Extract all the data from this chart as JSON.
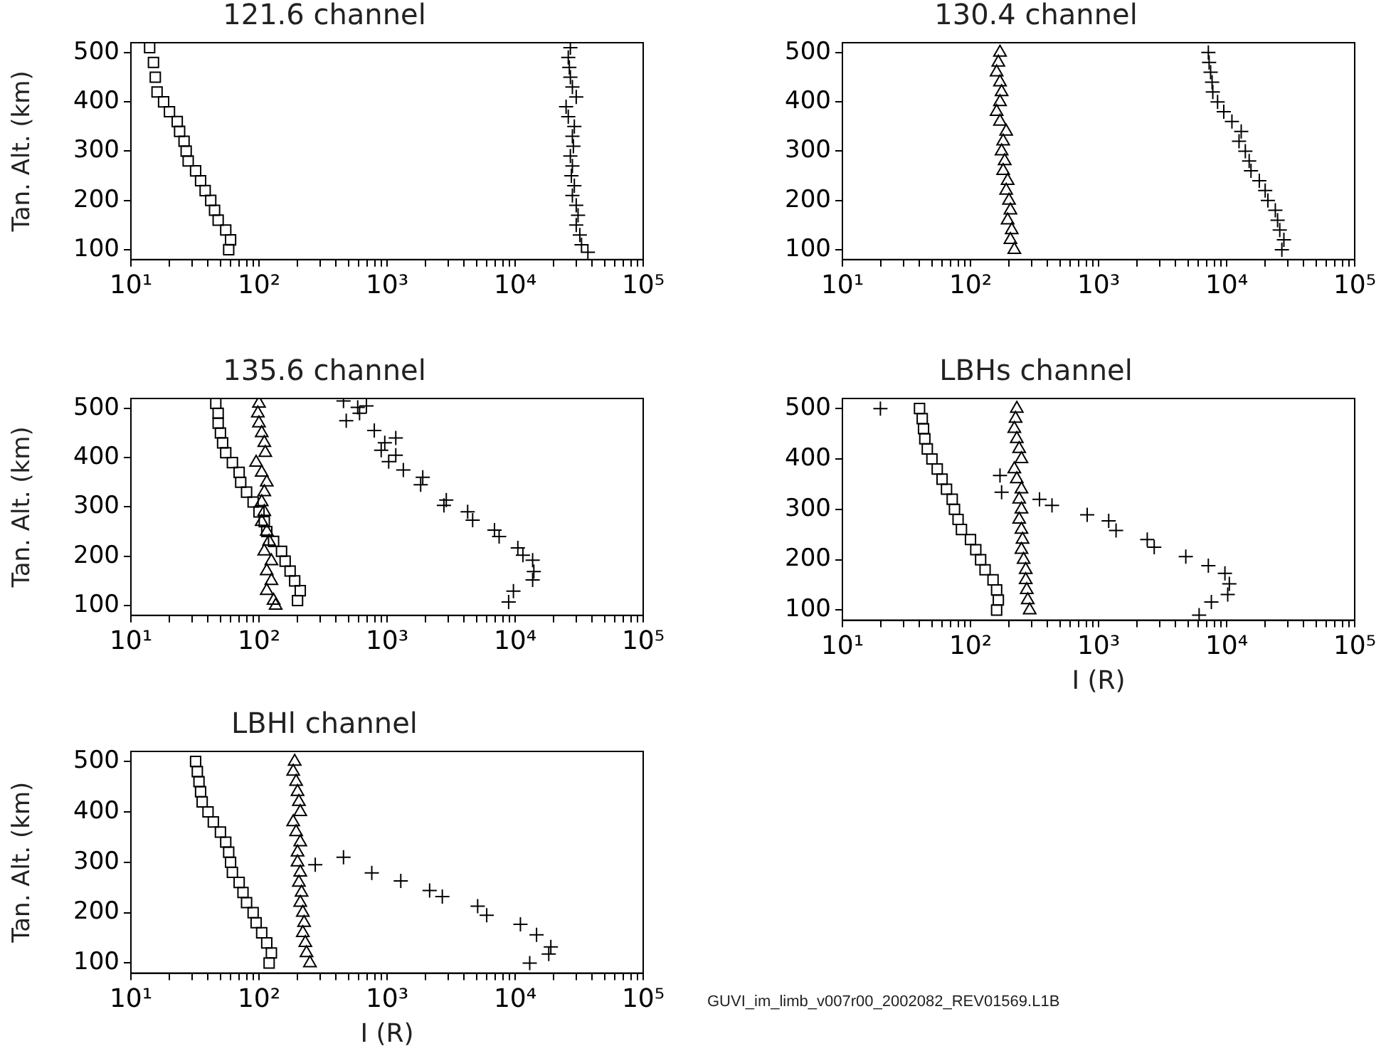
{
  "chart_data": [
    {
      "type": "scatter",
      "title": "121.6 channel",
      "ylabel": "Tan. Alt. (km)",
      "log": "x",
      "grid": false,
      "xlim": [
        10,
        100000
      ],
      "ylim": [
        80,
        520
      ],
      "xticks": [
        {
          "value": 10,
          "label": "10¹"
        },
        {
          "value": 20,
          "label": null
        },
        {
          "value": 30,
          "label": null
        },
        {
          "value": 40,
          "label": null
        },
        {
          "value": 50,
          "label": null
        },
        {
          "value": 60,
          "label": null
        },
        {
          "value": 70,
          "label": null
        },
        {
          "value": 80,
          "label": null
        },
        {
          "value": 90,
          "label": null
        },
        {
          "value": 100,
          "label": "10²"
        },
        {
          "value": 200,
          "label": null
        },
        {
          "value": 300,
          "label": null
        },
        {
          "value": 400,
          "label": null
        },
        {
          "value": 500,
          "label": null
        },
        {
          "value": 600,
          "label": null
        },
        {
          "value": 700,
          "label": null
        },
        {
          "value": 800,
          "label": null
        },
        {
          "value": 900,
          "label": null
        },
        {
          "value": 1000,
          "label": "10³"
        },
        {
          "value": 2000,
          "label": null
        },
        {
          "value": 3000,
          "label": null
        },
        {
          "value": 4000,
          "label": null
        },
        {
          "value": 5000,
          "label": null
        },
        {
          "value": 6000,
          "label": null
        },
        {
          "value": 7000,
          "label": null
        },
        {
          "value": 8000,
          "label": null
        },
        {
          "value": 9000,
          "label": null
        },
        {
          "value": 10000,
          "label": "10⁴"
        },
        {
          "value": 20000,
          "label": null
        },
        {
          "value": 30000,
          "label": null
        },
        {
          "value": 40000,
          "label": null
        },
        {
          "value": 50000,
          "label": null
        },
        {
          "value": 60000,
          "label": null
        },
        {
          "value": 70000,
          "label": null
        },
        {
          "value": 80000,
          "label": null
        },
        {
          "value": 90000,
          "label": null
        },
        {
          "value": 100000,
          "label": "10⁵"
        }
      ],
      "yticks": [
        100,
        200,
        300,
        400,
        500
      ],
      "series": [
        {
          "color": "#000000",
          "marker": "square",
          "x": [
            14,
            15,
            15.5,
            16,
            18,
            20,
            23,
            24,
            26,
            27,
            28,
            32,
            35,
            38,
            42,
            45,
            48,
            55,
            60,
            58
          ],
          "values": [
            510,
            480,
            450,
            420,
            400,
            380,
            360,
            340,
            320,
            300,
            280,
            260,
            240,
            220,
            200,
            180,
            160,
            140,
            120,
            100
          ]
        },
        {
          "color": "#000000",
          "marker": "cross",
          "x": [
            27000,
            26000,
            26500,
            27000,
            28000,
            30000,
            25000,
            26000,
            29000,
            28000,
            28500,
            27000,
            28000,
            27500,
            29000,
            28000,
            30000,
            31000,
            30000,
            32000,
            33000,
            37000
          ],
          "values": [
            510,
            490,
            470,
            450,
            430,
            410,
            390,
            370,
            350,
            330,
            310,
            290,
            270,
            250,
            230,
            210,
            190,
            170,
            150,
            130,
            110,
            95
          ]
        }
      ]
    },
    {
      "type": "scatter",
      "title": "130.4 channel",
      "log": "x",
      "grid": false,
      "xlim": [
        10,
        100000
      ],
      "ylim": [
        80,
        520
      ],
      "xticks": [
        {
          "value": 10,
          "label": "10¹"
        },
        {
          "value": 20,
          "label": null
        },
        {
          "value": 30,
          "label": null
        },
        {
          "value": 40,
          "label": null
        },
        {
          "value": 50,
          "label": null
        },
        {
          "value": 60,
          "label": null
        },
        {
          "value": 70,
          "label": null
        },
        {
          "value": 80,
          "label": null
        },
        {
          "value": 90,
          "label": null
        },
        {
          "value": 100,
          "label": "10²"
        },
        {
          "value": 200,
          "label": null
        },
        {
          "value": 300,
          "label": null
        },
        {
          "value": 400,
          "label": null
        },
        {
          "value": 500,
          "label": null
        },
        {
          "value": 600,
          "label": null
        },
        {
          "value": 700,
          "label": null
        },
        {
          "value": 800,
          "label": null
        },
        {
          "value": 900,
          "label": null
        },
        {
          "value": 1000,
          "label": "10³"
        },
        {
          "value": 2000,
          "label": null
        },
        {
          "value": 3000,
          "label": null
        },
        {
          "value": 4000,
          "label": null
        },
        {
          "value": 5000,
          "label": null
        },
        {
          "value": 6000,
          "label": null
        },
        {
          "value": 7000,
          "label": null
        },
        {
          "value": 8000,
          "label": null
        },
        {
          "value": 9000,
          "label": null
        },
        {
          "value": 10000,
          "label": "10⁴"
        },
        {
          "value": 20000,
          "label": null
        },
        {
          "value": 30000,
          "label": null
        },
        {
          "value": 40000,
          "label": null
        },
        {
          "value": 50000,
          "label": null
        },
        {
          "value": 60000,
          "label": null
        },
        {
          "value": 70000,
          "label": null
        },
        {
          "value": 80000,
          "label": null
        },
        {
          "value": 90000,
          "label": null
        },
        {
          "value": 100000,
          "label": "10⁵"
        }
      ],
      "yticks": [
        100,
        200,
        300,
        400,
        500
      ],
      "series": [
        {
          "color": "#000000",
          "marker": "triangle",
          "x": [
            170,
            165,
            160,
            170,
            175,
            170,
            160,
            170,
            190,
            180,
            175,
            185,
            180,
            195,
            190,
            200,
            205,
            195,
            210,
            205,
            220
          ],
          "values": [
            500,
            480,
            460,
            440,
            420,
            400,
            380,
            360,
            340,
            320,
            300,
            280,
            260,
            240,
            220,
            200,
            180,
            160,
            140,
            120,
            100
          ]
        },
        {
          "color": "#000000",
          "marker": "cross",
          "x": [
            7200,
            7300,
            7500,
            7700,
            7800,
            8500,
            9500,
            11000,
            13000,
            12500,
            14000,
            15000,
            15500,
            18000,
            20000,
            21000,
            24000,
            25000,
            26000,
            28000,
            27000
          ],
          "values": [
            500,
            480,
            460,
            440,
            420,
            400,
            380,
            360,
            340,
            320,
            300,
            280,
            260,
            240,
            220,
            200,
            180,
            160,
            140,
            120,
            100
          ]
        }
      ]
    },
    {
      "type": "scatter",
      "title": "135.6 channel",
      "ylabel": "Tan. Alt. (km)",
      "log": "x",
      "grid": false,
      "xlim": [
        10,
        100000
      ],
      "ylim": [
        80,
        520
      ],
      "xticks": [
        {
          "value": 10,
          "label": "10¹"
        },
        {
          "value": 20,
          "label": null
        },
        {
          "value": 30,
          "label": null
        },
        {
          "value": 40,
          "label": null
        },
        {
          "value": 50,
          "label": null
        },
        {
          "value": 60,
          "label": null
        },
        {
          "value": 70,
          "label": null
        },
        {
          "value": 80,
          "label": null
        },
        {
          "value": 90,
          "label": null
        },
        {
          "value": 100,
          "label": "10²"
        },
        {
          "value": 200,
          "label": null
        },
        {
          "value": 300,
          "label": null
        },
        {
          "value": 400,
          "label": null
        },
        {
          "value": 500,
          "label": null
        },
        {
          "value": 600,
          "label": null
        },
        {
          "value": 700,
          "label": null
        },
        {
          "value": 800,
          "label": null
        },
        {
          "value": 900,
          "label": null
        },
        {
          "value": 1000,
          "label": "10³"
        },
        {
          "value": 2000,
          "label": null
        },
        {
          "value": 3000,
          "label": null
        },
        {
          "value": 4000,
          "label": null
        },
        {
          "value": 5000,
          "label": null
        },
        {
          "value": 6000,
          "label": null
        },
        {
          "value": 7000,
          "label": null
        },
        {
          "value": 8000,
          "label": null
        },
        {
          "value": 9000,
          "label": null
        },
        {
          "value": 10000,
          "label": "10⁴"
        },
        {
          "value": 20000,
          "label": null
        },
        {
          "value": 30000,
          "label": null
        },
        {
          "value": 40000,
          "label": null
        },
        {
          "value": 50000,
          "label": null
        },
        {
          "value": 60000,
          "label": null
        },
        {
          "value": 70000,
          "label": null
        },
        {
          "value": 80000,
          "label": null
        },
        {
          "value": 90000,
          "label": null
        },
        {
          "value": 100000,
          "label": "10⁵"
        }
      ],
      "yticks": [
        100,
        200,
        300,
        400,
        500
      ],
      "series": [
        {
          "color": "#000000",
          "marker": "square",
          "x": [
            46,
            48,
            48,
            50,
            52,
            55,
            62,
            70,
            72,
            80,
            90,
            100,
            110,
            115,
            130,
            150,
            160,
            175,
            190,
            210,
            200
          ],
          "values": [
            510,
            490,
            470,
            450,
            430,
            410,
            390,
            370,
            350,
            330,
            310,
            290,
            270,
            250,
            230,
            210,
            190,
            170,
            150,
            130,
            110
          ]
        },
        {
          "color": "#000000",
          "marker": "triangle",
          "x": [
            100,
            98,
            100,
            105,
            110,
            112,
            95,
            105,
            115,
            110,
            105,
            110,
            105,
            115,
            120,
            110,
            125,
            115,
            125,
            115,
            130,
            135
          ],
          "values": [
            510,
            490,
            470,
            450,
            430,
            410,
            390,
            370,
            350,
            330,
            310,
            290,
            270,
            250,
            230,
            210,
            190,
            170,
            150,
            130,
            110,
            100
          ]
        },
        {
          "color": "#000000",
          "marker": "cross",
          "x": [
            457,
            590,
            690,
            610,
            480,
            795,
            1170,
            960,
            900,
            1170,
            1030,
            1340,
            1900,
            1830,
            2900,
            2780,
            4260,
            4660,
            6900,
            7500,
            10500,
            11500,
            13700,
            14000,
            13700,
            9700,
            8900
          ],
          "values": [
            515,
            502,
            505,
            490,
            475,
            455,
            440,
            430,
            415,
            405,
            392,
            375,
            360,
            345,
            314,
            303,
            290,
            273,
            253,
            240,
            217,
            202,
            192,
            169,
            152,
            129,
            107
          ]
        }
      ]
    },
    {
      "type": "scatter",
      "title": "LBHs channel",
      "xlabel": "I (R)",
      "log": "x",
      "grid": false,
      "xlim": [
        10,
        100000
      ],
      "ylim": [
        80,
        520
      ],
      "xticks": [
        {
          "value": 10,
          "label": "10¹"
        },
        {
          "value": 20,
          "label": null
        },
        {
          "value": 30,
          "label": null
        },
        {
          "value": 40,
          "label": null
        },
        {
          "value": 50,
          "label": null
        },
        {
          "value": 60,
          "label": null
        },
        {
          "value": 70,
          "label": null
        },
        {
          "value": 80,
          "label": null
        },
        {
          "value": 90,
          "label": null
        },
        {
          "value": 100,
          "label": "10²"
        },
        {
          "value": 200,
          "label": null
        },
        {
          "value": 300,
          "label": null
        },
        {
          "value": 400,
          "label": null
        },
        {
          "value": 500,
          "label": null
        },
        {
          "value": 600,
          "label": null
        },
        {
          "value": 700,
          "label": null
        },
        {
          "value": 800,
          "label": null
        },
        {
          "value": 900,
          "label": null
        },
        {
          "value": 1000,
          "label": "10³"
        },
        {
          "value": 2000,
          "label": null
        },
        {
          "value": 3000,
          "label": null
        },
        {
          "value": 4000,
          "label": null
        },
        {
          "value": 5000,
          "label": null
        },
        {
          "value": 6000,
          "label": null
        },
        {
          "value": 7000,
          "label": null
        },
        {
          "value": 8000,
          "label": null
        },
        {
          "value": 9000,
          "label": null
        },
        {
          "value": 10000,
          "label": "10⁴"
        },
        {
          "value": 20000,
          "label": null
        },
        {
          "value": 30000,
          "label": null
        },
        {
          "value": 40000,
          "label": null
        },
        {
          "value": 50000,
          "label": null
        },
        {
          "value": 60000,
          "label": null
        },
        {
          "value": 70000,
          "label": null
        },
        {
          "value": 80000,
          "label": null
        },
        {
          "value": 90000,
          "label": null
        },
        {
          "value": 100000,
          "label": "10⁵"
        }
      ],
      "yticks": [
        100,
        200,
        300,
        400,
        500
      ],
      "series": [
        {
          "color": "#000000",
          "marker": "square",
          "x": [
            40,
            42,
            43,
            44,
            46,
            50,
            55,
            60,
            65,
            72,
            75,
            80,
            85,
            100,
            110,
            120,
            130,
            150,
            160,
            165,
            160
          ],
          "values": [
            500,
            480,
            460,
            440,
            420,
            400,
            380,
            360,
            340,
            320,
            300,
            280,
            260,
            240,
            220,
            200,
            180,
            160,
            140,
            120,
            100
          ]
        },
        {
          "color": "#000000",
          "marker": "triangle",
          "x": [
            230,
            225,
            220,
            230,
            240,
            250,
            220,
            230,
            250,
            240,
            250,
            240,
            250,
            255,
            250,
            260,
            270,
            270,
            275,
            280,
            290
          ],
          "values": [
            500,
            480,
            460,
            440,
            420,
            400,
            380,
            360,
            340,
            320,
            300,
            280,
            260,
            240,
            220,
            200,
            180,
            160,
            140,
            120,
            100
          ]
        },
        {
          "color": "#000000",
          "marker": "cross",
          "x": [
            19.8,
            170,
            175,
            346,
            433,
            815,
            1200,
            1370,
            2400,
            2720,
            4800,
            7200,
            9700,
            10500,
            10200,
            7600,
            6100
          ],
          "values": [
            500,
            367,
            334,
            320,
            308,
            289,
            277,
            258,
            240,
            225,
            206,
            188,
            173,
            152,
            131,
            116,
            90
          ]
        }
      ]
    },
    {
      "type": "scatter",
      "title": "LBHl channel",
      "xlabel": "I (R)",
      "ylabel": "Tan. Alt. (km)",
      "log": "x",
      "grid": false,
      "xlim": [
        10,
        100000
      ],
      "ylim": [
        80,
        520
      ],
      "annotations": [
        "GUVI_im_limb_v007r00_2002082_REV01569.L1B"
      ],
      "xticks": [
        {
          "value": 10,
          "label": "10¹"
        },
        {
          "value": 20,
          "label": null
        },
        {
          "value": 30,
          "label": null
        },
        {
          "value": 40,
          "label": null
        },
        {
          "value": 50,
          "label": null
        },
        {
          "value": 60,
          "label": null
        },
        {
          "value": 70,
          "label": null
        },
        {
          "value": 80,
          "label": null
        },
        {
          "value": 90,
          "label": null
        },
        {
          "value": 100,
          "label": "10²"
        },
        {
          "value": 200,
          "label": null
        },
        {
          "value": 300,
          "label": null
        },
        {
          "value": 400,
          "label": null
        },
        {
          "value": 500,
          "label": null
        },
        {
          "value": 600,
          "label": null
        },
        {
          "value": 700,
          "label": null
        },
        {
          "value": 800,
          "label": null
        },
        {
          "value": 900,
          "label": null
        },
        {
          "value": 1000,
          "label": "10³"
        },
        {
          "value": 2000,
          "label": null
        },
        {
          "value": 3000,
          "label": null
        },
        {
          "value": 4000,
          "label": null
        },
        {
          "value": 5000,
          "label": null
        },
        {
          "value": 6000,
          "label": null
        },
        {
          "value": 7000,
          "label": null
        },
        {
          "value": 8000,
          "label": null
        },
        {
          "value": 9000,
          "label": null
        },
        {
          "value": 10000,
          "label": "10⁴"
        },
        {
          "value": 20000,
          "label": null
        },
        {
          "value": 30000,
          "label": null
        },
        {
          "value": 40000,
          "label": null
        },
        {
          "value": 50000,
          "label": null
        },
        {
          "value": 60000,
          "label": null
        },
        {
          "value": 70000,
          "label": null
        },
        {
          "value": 80000,
          "label": null
        },
        {
          "value": 90000,
          "label": null
        },
        {
          "value": 100000,
          "label": "10⁵"
        }
      ],
      "yticks": [
        100,
        200,
        300,
        400,
        500
      ],
      "series": [
        {
          "color": "#000000",
          "marker": "square",
          "x": [
            32,
            33,
            34,
            35,
            36,
            40,
            44,
            50,
            55,
            58,
            60,
            62,
            70,
            75,
            80,
            90,
            95,
            105,
            115,
            125,
            120
          ],
          "values": [
            500,
            480,
            460,
            440,
            420,
            400,
            380,
            360,
            340,
            320,
            300,
            280,
            260,
            240,
            220,
            200,
            180,
            160,
            140,
            120,
            100
          ]
        },
        {
          "color": "#000000",
          "marker": "triangle",
          "x": [
            190,
            185,
            195,
            200,
            205,
            210,
            185,
            195,
            210,
            200,
            200,
            210,
            205,
            215,
            210,
            220,
            225,
            220,
            230,
            235,
            250
          ],
          "values": [
            500,
            480,
            460,
            440,
            420,
            400,
            380,
            360,
            340,
            320,
            300,
            280,
            260,
            240,
            220,
            200,
            180,
            160,
            140,
            120,
            100
          ]
        },
        {
          "color": "#000000",
          "marker": "cross",
          "x": [
            275,
            457,
            760,
            1280,
            2150,
            2700,
            5100,
            6000,
            11000,
            14700,
            19000,
            18300,
            13000
          ],
          "values": [
            295,
            310,
            279,
            263,
            244,
            232,
            213,
            195,
            177,
            156,
            132,
            118,
            100
          ]
        }
      ]
    }
  ]
}
